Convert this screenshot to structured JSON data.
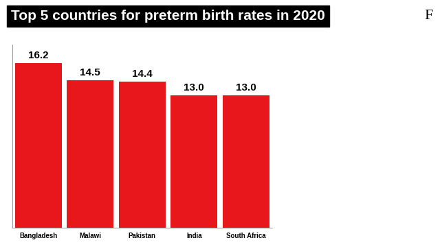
{
  "chart_data": {
    "type": "bar",
    "title": "Top 5 countries for preterm birth rates in 2020",
    "categories": [
      "Bangladesh",
      "Malawi",
      "Pakistan",
      "India",
      "South Africa"
    ],
    "values": [
      16.2,
      14.5,
      14.4,
      13.0,
      13.0
    ],
    "color": "#e8171c",
    "ylim": [
      0,
      18
    ],
    "yticks": [],
    "grid": false,
    "data_labels": true,
    "tick_labels": "x",
    "annotations": [
      "F"
    ]
  }
}
